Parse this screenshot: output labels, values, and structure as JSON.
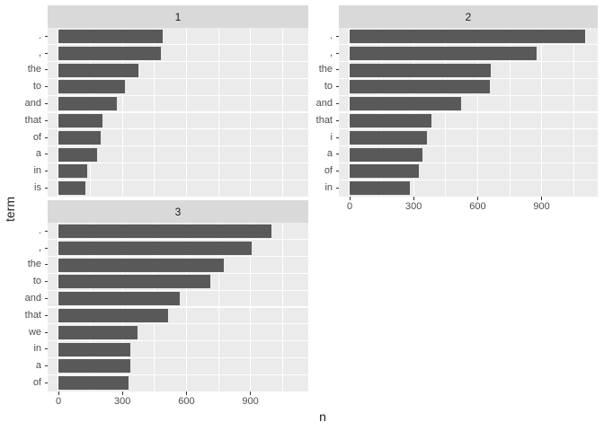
{
  "axes": {
    "x_title": "n",
    "y_title": "term",
    "x_major_ticks": [
      0,
      300,
      600,
      900
    ],
    "x_minor_ticks": [
      150,
      450,
      750,
      1050
    ]
  },
  "style": {
    "background": "#FFFFFF",
    "panel_bg": "#EBEBEB",
    "strip_bg": "#D9D9D9",
    "bar_color": "#595959",
    "grid_color": "#FFFFFF",
    "tick_color": "#333333",
    "axis_text_color": "#4D4D4D",
    "strip_text_color": "#1A1A1A"
  },
  "chart_data": {
    "type": "bar",
    "orientation": "horizontal",
    "xlabel": "n",
    "ylabel": "term",
    "x_range": [
      0,
      1200
    ],
    "grid": true,
    "facets": [
      {
        "label": "1",
        "terms": [
          ".",
          ",",
          "the",
          "to",
          "and",
          "that",
          "of",
          "a",
          "in",
          "is"
        ],
        "values": [
          488,
          480,
          374,
          311,
          273,
          206,
          198,
          180,
          135,
          126
        ]
      },
      {
        "label": "2",
        "terms": [
          ".",
          ",",
          "the",
          "to",
          "and",
          "that",
          "i",
          "a",
          "of",
          "in"
        ],
        "values": [
          1105,
          877,
          660,
          656,
          522,
          382,
          361,
          340,
          323,
          281
        ]
      },
      {
        "label": "3",
        "terms": [
          ".",
          ",",
          "the",
          "to",
          "and",
          "that",
          "we",
          "in",
          "a",
          "of"
        ],
        "values": [
          997,
          906,
          774,
          712,
          568,
          515,
          369,
          339,
          335,
          327
        ]
      }
    ]
  }
}
